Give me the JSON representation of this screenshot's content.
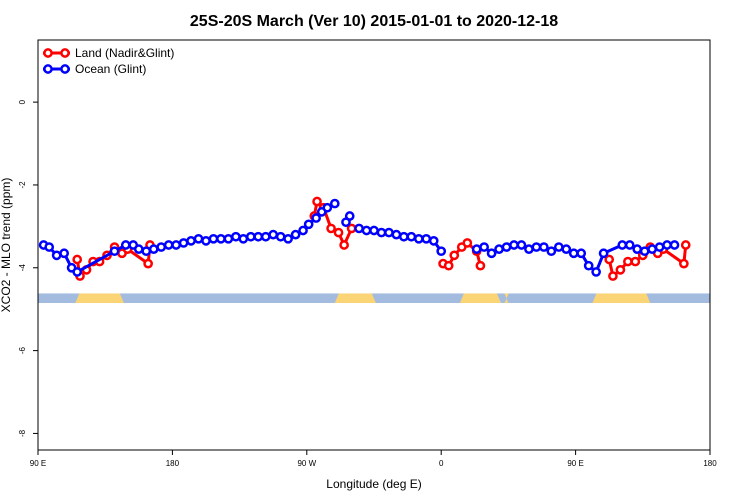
{
  "chart_data": {
    "type": "line",
    "title": "25S-20S March (Ver 10)   2015-01-01 to 2020-12-18",
    "xlabel": "Longitude (deg E)",
    "ylabel": "XCO2 - MLO trend (ppm)",
    "xlim": [
      90,
      450
    ],
    "ylim": [
      -8.4,
      1.5
    ],
    "x_ticks": [
      {
        "value": 90,
        "label": "90 E"
      },
      {
        "value": 162,
        "label": "180"
      },
      {
        "value": 234,
        "label": "90 W"
      },
      {
        "value": 306,
        "label": "0"
      },
      {
        "value": 378,
        "label": "90 E"
      },
      {
        "value": 450,
        "label": "180"
      }
    ],
    "y_ticks": [
      {
        "value": 0,
        "label": "0"
      },
      {
        "value": -2,
        "label": "-2"
      },
      {
        "value": -4,
        "label": "-4"
      },
      {
        "value": -6,
        "label": "-6"
      },
      {
        "value": -8,
        "label": "-8"
      }
    ],
    "legend_position": "top-left",
    "series": [
      {
        "name": "Land (Nadir&Glint)",
        "color": "#ff0000",
        "segments": [
          [
            [
              111,
              -3.8
            ],
            [
              112.5,
              -4.2
            ],
            [
              116,
              -4.05
            ],
            [
              119.5,
              -3.85
            ],
            [
              123,
              -3.85
            ],
            [
              127,
              -3.7
            ],
            [
              131,
              -3.5
            ],
            [
              135,
              -3.65
            ],
            [
              138,
              -3.55
            ],
            [
              149,
              -3.9
            ],
            [
              150,
              -3.45
            ]
          ],
          [
            [
              238,
              -2.75
            ],
            [
              239.5,
              -2.4
            ],
            [
              243,
              -2.55
            ],
            [
              247,
              -3.05
            ],
            [
              251,
              -3.15
            ],
            [
              254,
              -3.45
            ],
            [
              258,
              -3.05
            ]
          ],
          [
            [
              307,
              -3.9
            ],
            [
              310,
              -3.95
            ],
            [
              313,
              -3.7
            ],
            [
              317,
              -3.5
            ],
            [
              320,
              -3.4
            ],
            [
              325,
              -3.6
            ],
            [
              327,
              -3.95
            ]
          ],
          [
            [
              396,
              -3.8
            ],
            [
              398,
              -4.2
            ],
            [
              402,
              -4.05
            ],
            [
              406,
              -3.85
            ],
            [
              410,
              -3.85
            ],
            [
              414,
              -3.7
            ],
            [
              418,
              -3.5
            ],
            [
              422,
              -3.65
            ],
            [
              425,
              -3.55
            ],
            [
              436,
              -3.9
            ],
            [
              437,
              -3.45
            ]
          ]
        ]
      },
      {
        "name": "Ocean (Glint)",
        "color": "#0000ff",
        "segments": [
          [
            [
              93,
              -3.45
            ],
            [
              96,
              -3.5
            ],
            [
              100,
              -3.7
            ],
            [
              104,
              -3.65
            ],
            [
              108,
              -4.0
            ],
            [
              111,
              -4.1
            ],
            [
              131,
              -3.6
            ],
            [
              137,
              -3.45
            ],
            [
              141,
              -3.45
            ],
            [
              144,
              -3.55
            ],
            [
              148,
              -3.6
            ],
            [
              152,
              -3.55
            ],
            [
              156,
              -3.5
            ],
            [
              160,
              -3.45
            ],
            [
              164,
              -3.45
            ],
            [
              168,
              -3.4
            ],
            [
              172,
              -3.35
            ],
            [
              176,
              -3.3
            ],
            [
              180,
              -3.35
            ],
            [
              184,
              -3.3
            ],
            [
              188,
              -3.3
            ],
            [
              192,
              -3.3
            ],
            [
              196,
              -3.25
            ],
            [
              200,
              -3.3
            ],
            [
              204,
              -3.25
            ],
            [
              208,
              -3.25
            ],
            [
              212,
              -3.25
            ],
            [
              216,
              -3.2
            ],
            [
              220,
              -3.25
            ],
            [
              224,
              -3.3
            ],
            [
              228,
              -3.2
            ],
            [
              232,
              -3.1
            ],
            [
              235,
              -2.95
            ],
            [
              239,
              -2.8
            ],
            [
              242,
              -2.65
            ],
            [
              245,
              -2.55
            ],
            [
              249,
              -2.45
            ]
          ],
          [
            [
              255,
              -2.9
            ],
            [
              257,
              -2.75
            ]
          ],
          [
            [
              262,
              -3.05
            ],
            [
              266,
              -3.1
            ],
            [
              270,
              -3.1
            ],
            [
              274,
              -3.15
            ],
            [
              278,
              -3.15
            ],
            [
              282,
              -3.2
            ],
            [
              286,
              -3.25
            ],
            [
              290,
              -3.25
            ],
            [
              294,
              -3.3
            ],
            [
              298,
              -3.3
            ],
            [
              302,
              -3.35
            ],
            [
              306,
              -3.6
            ]
          ],
          [
            [
              325,
              -3.55
            ],
            [
              329,
              -3.5
            ],
            [
              333,
              -3.65
            ],
            [
              337,
              -3.55
            ],
            [
              341,
              -3.5
            ],
            [
              345,
              -3.45
            ],
            [
              349,
              -3.45
            ],
            [
              353,
              -3.55
            ],
            [
              357,
              -3.5
            ],
            [
              361,
              -3.5
            ],
            [
              365,
              -3.6
            ],
            [
              369,
              -3.5
            ],
            [
              373,
              -3.55
            ],
            [
              377,
              -3.65
            ],
            [
              381,
              -3.65
            ],
            [
              385,
              -3.95
            ],
            [
              389,
              -4.1
            ],
            [
              393,
              -3.65
            ],
            [
              403,
              -3.45
            ],
            [
              407,
              -3.45
            ],
            [
              411,
              -3.55
            ],
            [
              415,
              -3.6
            ],
            [
              419,
              -3.55
            ],
            [
              423,
              -3.5
            ],
            [
              427,
              -3.45
            ],
            [
              431,
              -3.45
            ]
          ]
        ]
      }
    ],
    "band": {
      "y_range": [
        -4.85,
        -4.62
      ],
      "ocean_color": "#a3bbde",
      "land_color": "#fbd476",
      "land_x_ranges": [
        [
          110,
          136
        ],
        [
          249,
          271
        ],
        [
          316,
          338
        ],
        [
          340,
          342
        ],
        [
          387,
          418
        ]
      ]
    }
  }
}
